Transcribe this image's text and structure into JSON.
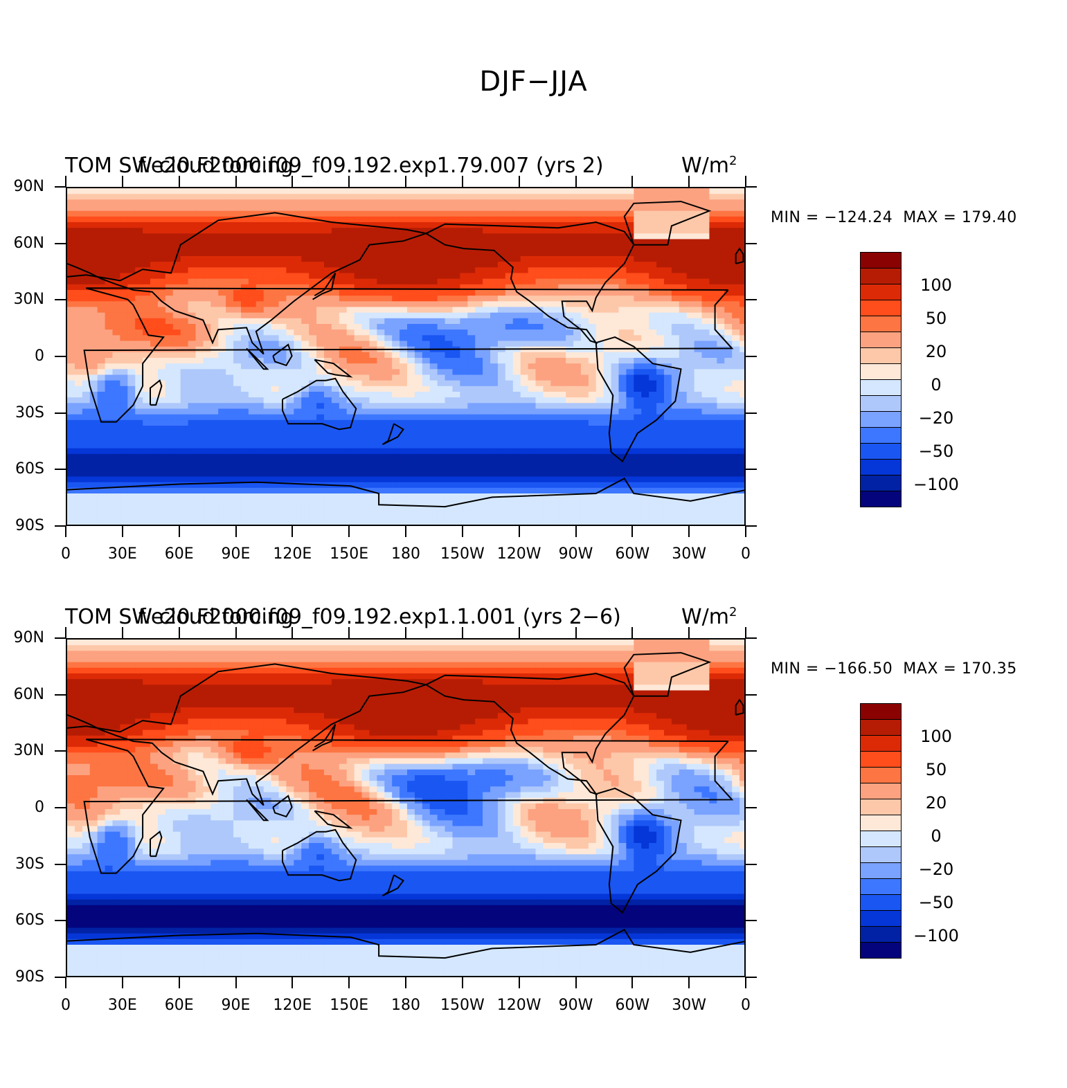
{
  "title": "DJF−JJA",
  "colors": {
    "land_coast": "#000000",
    "palette": [
      "#04047d",
      "#0122a5",
      "#0536d8",
      "#1a56f2",
      "#3d77ff",
      "#7aa2ff",
      "#aec8fb",
      "#d4e7fe",
      "#fee8d8",
      "#fdc8a9",
      "#fca281",
      "#fd7543",
      "#ff4d1b",
      "#dc2a07",
      "#b61c04",
      "#8b0203"
    ]
  },
  "panels": [
    {
      "title_left": "TOM SW cloud forcing",
      "title_overlay": "f.e20.F2000.f09_f09.192.exp1.79.007 (yrs 2)",
      "units": "W/m",
      "units_sup": "2",
      "min_label": "MIN =",
      "min_value": "−124.24",
      "max_label": "MAX =",
      "max_value": "179.40"
    },
    {
      "title_left": "TOM SW cloud forcing",
      "title_overlay": "f.e20.F2000.f09_f09.192.exp1.1.001 (yrs 2−6)",
      "units": "W/m",
      "units_sup": "2",
      "min_label": "MIN =",
      "min_value": "−166.50",
      "max_label": "MAX =",
      "max_value": "170.35"
    }
  ],
  "y_ticks": [
    "90N",
    "60N",
    "30N",
    "0",
    "30S",
    "60S",
    "90S"
  ],
  "x_ticks": [
    "0",
    "30E",
    "60E",
    "90E",
    "120E",
    "150E",
    "180",
    "150W",
    "120W",
    "90W",
    "60W",
    "30W",
    "0"
  ],
  "legend_labels": [
    "100",
    "50",
    "20",
    "0",
    "−20",
    "−50",
    "−100"
  ],
  "chart_data": {
    "type": "heatmap",
    "title": "DJF−JJA",
    "variable": "TOM SW cloud forcing",
    "units": "W/m2",
    "xlim": [
      0,
      360
    ],
    "ylim": [
      -90,
      90
    ],
    "contour_levels": [
      -100,
      -50,
      -20,
      0,
      20,
      50,
      100
    ],
    "panels": [
      {
        "case": "f.e20.F2000.f09_f09.192.exp1.79.007 (yrs 2)",
        "min": -124.24,
        "max": 179.4
      },
      {
        "case": "f.e20.F2000.f09_f09.192.exp1.1.001 (yrs 2−6)",
        "min": -166.5,
        "max": 170.35
      }
    ]
  }
}
